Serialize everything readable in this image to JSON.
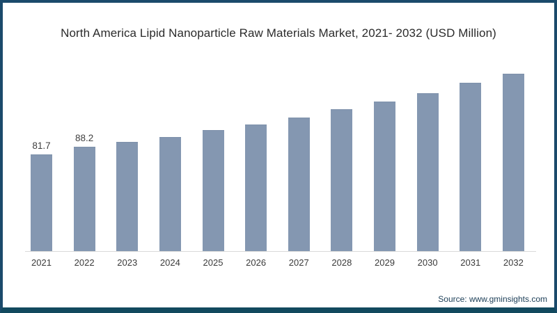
{
  "page": {
    "title": "North America Lipid Nanoparticle Raw Materials Market, 2021- 2032 (USD Million)",
    "source": "Source: www.gminsights.com"
  },
  "colors": {
    "bar_fill": "#8497b1",
    "bar_top_edge": "#7d90aa",
    "frame_border": "#1b4a6b",
    "frame_bottom_border": "#12495e",
    "axis_line": "#d9d9d9",
    "title_text": "#2b2b2b",
    "value_label_text": "#3f3f3f",
    "tick_text": "#3a3a3a",
    "source_text": "#1c3e57"
  },
  "chart_data": {
    "type": "bar",
    "title": "North America Lipid Nanoparticle Raw Materials Market, 2021- 2032 (USD Million)",
    "categories": [
      "2021",
      "2022",
      "2023",
      "2024",
      "2025",
      "2026",
      "2027",
      "2028",
      "2029",
      "2030",
      "2031",
      "2032"
    ],
    "values": [
      81.7,
      88.2,
      92.3,
      96.4,
      102.3,
      107.0,
      112.9,
      120.0,
      126.4,
      133.5,
      142.3,
      150.0
    ],
    "data_labels": [
      "81.7",
      "88.2",
      "",
      "",
      "",
      "",
      "",
      "",
      "",
      "",
      "",
      ""
    ],
    "xlabel": "",
    "ylabel": "",
    "ylim": [
      0,
      160
    ],
    "grid": false,
    "legend": false,
    "bar_color": "#8497b1",
    "note": "Source: www.gminsights.com"
  }
}
